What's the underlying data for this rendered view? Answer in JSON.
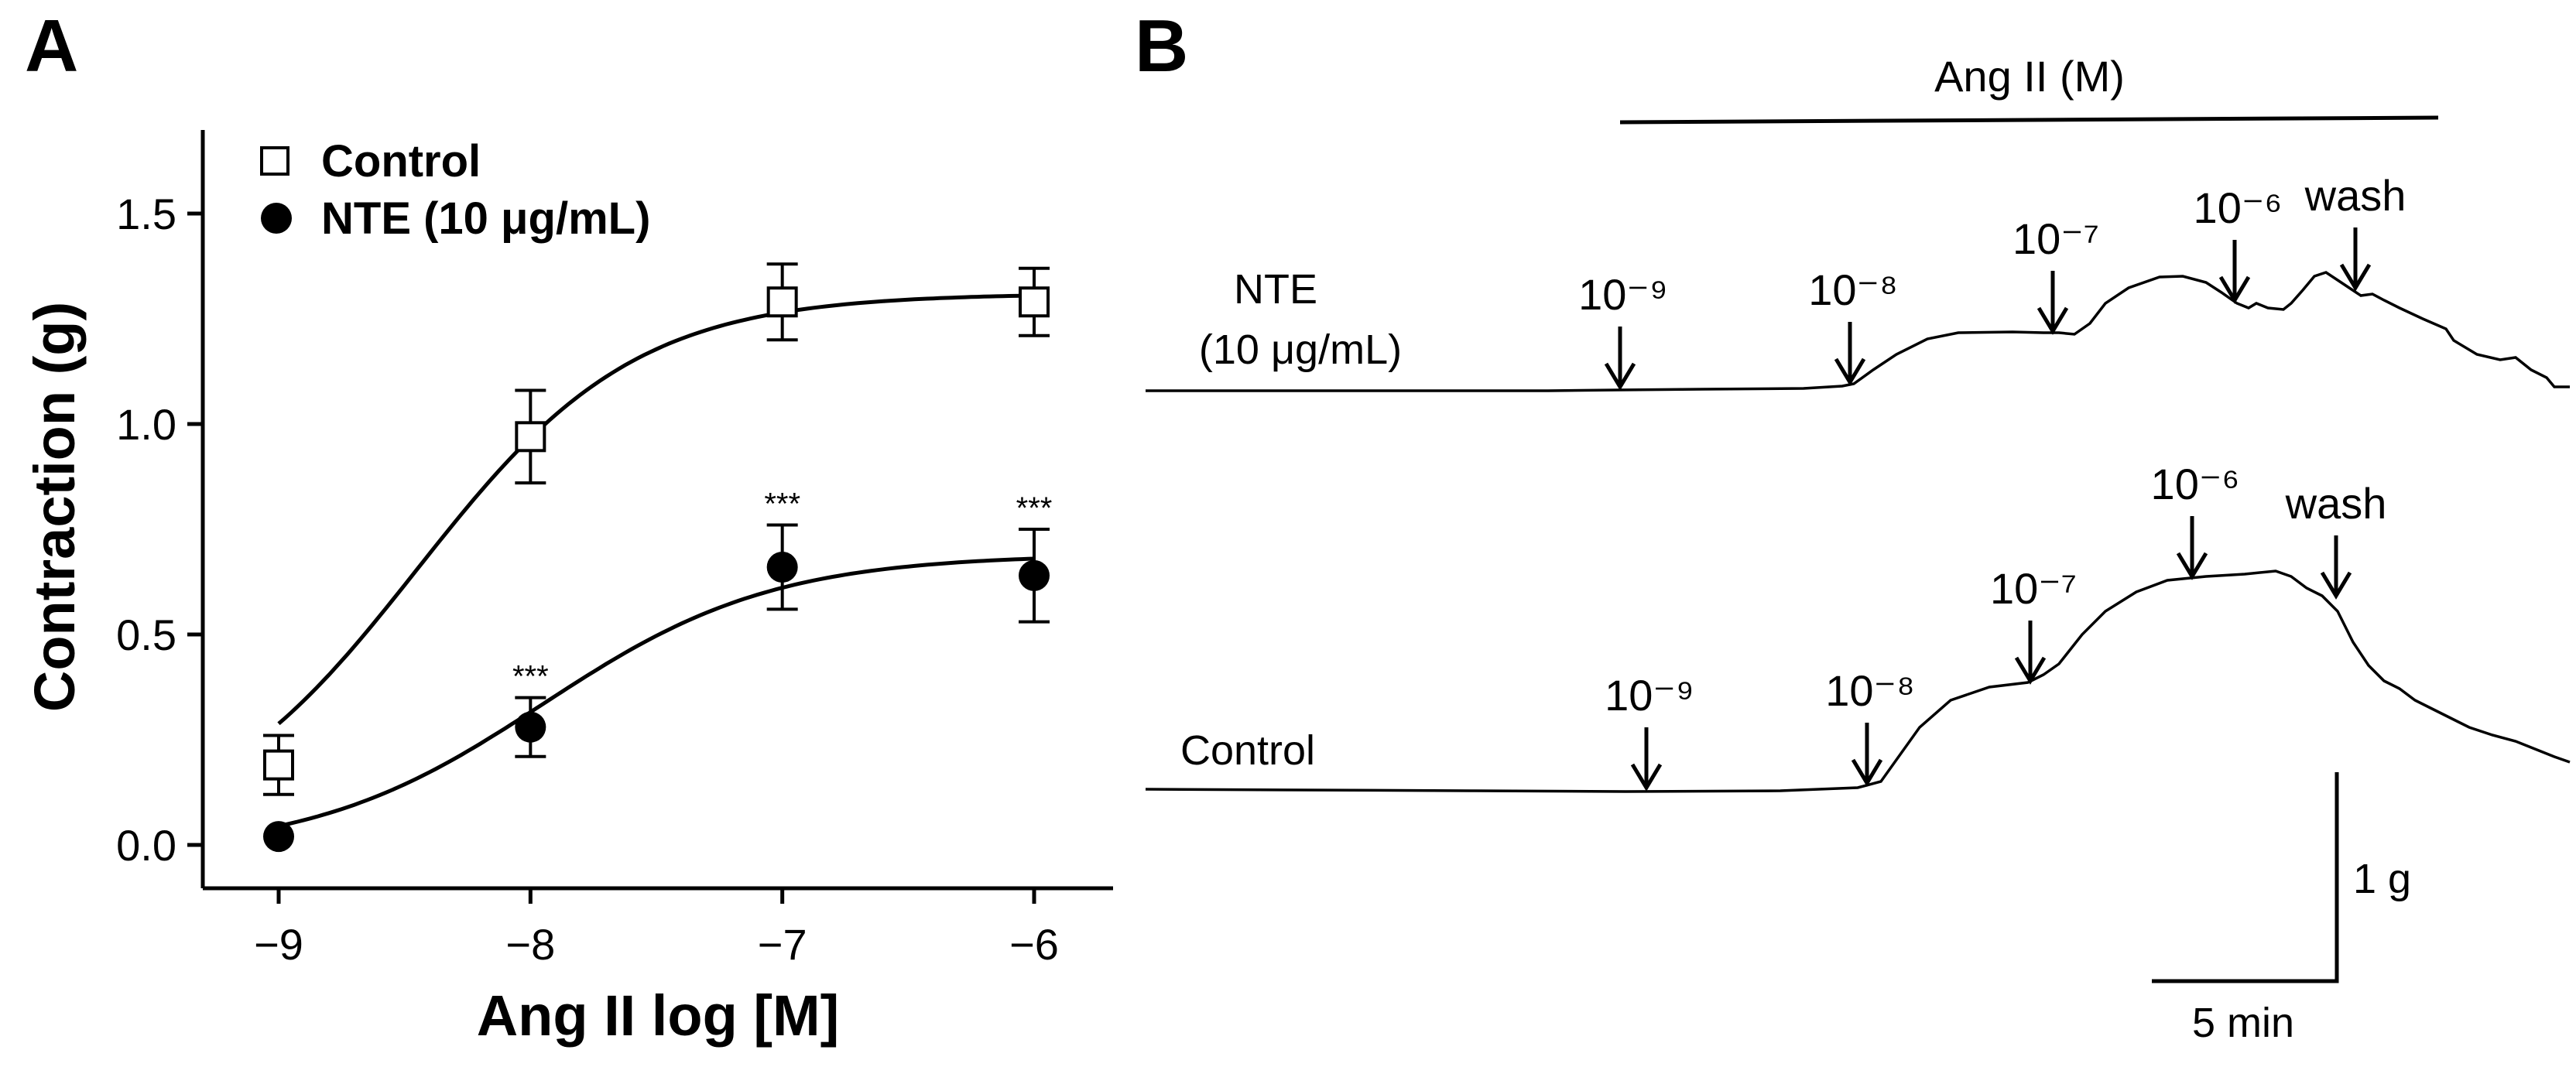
{
  "panel_a": {
    "letter": "A",
    "chart_data": {
      "type": "scatter",
      "xlabel": "Ang II log [M]",
      "ylabel": "Contraction (g)",
      "xlim": [
        -9.3,
        -5.9
      ],
      "ylim": [
        -0.1,
        1.7
      ],
      "xticks": [
        -9,
        -8,
        -7,
        -6
      ],
      "xtick_labels": [
        "−9",
        "−8",
        "−7",
        "−6"
      ],
      "yticks": [
        0.0,
        0.5,
        1.0,
        1.5
      ],
      "ytick_labels": [
        "0.0",
        "0.5",
        "1.0",
        "1.5"
      ],
      "grid": false,
      "legend_position": "top-left",
      "x": [
        -9,
        -8,
        -7,
        -6
      ],
      "series": [
        {
          "name": "Control",
          "marker": "open-square",
          "values": [
            0.19,
            0.97,
            1.29,
            1.29
          ],
          "error": [
            0.07,
            0.11,
            0.09,
            0.08
          ],
          "fit": {
            "bottom": 0.0,
            "top": 1.31,
            "ec50_log": -8.45,
            "hill": 1.0
          }
        },
        {
          "name": "NTE (10 μg/mL)",
          "marker": "filled-circle",
          "values": [
            0.02,
            0.28,
            0.66,
            0.64
          ],
          "error": [
            0.0,
            0.07,
            0.1,
            0.11
          ],
          "fit": {
            "bottom": -0.02,
            "top": 0.69,
            "ec50_log": -7.95,
            "hill": 0.95
          }
        }
      ],
      "annotations": [
        {
          "text": "***",
          "series": 1,
          "x": -8
        },
        {
          "text": "***",
          "series": 1,
          "x": -7
        },
        {
          "text": "***",
          "series": 1,
          "x": -6
        }
      ]
    }
  },
  "panel_b": {
    "letter": "B",
    "bar_label": "Ang II (M)",
    "trace_labels": {
      "nte_line1": "NTE",
      "nte_line2": "(10 μg/mL)",
      "control": "Control"
    },
    "doses": {
      "nte": [
        "10⁻⁹",
        "10⁻⁸",
        "10⁻⁷",
        "10⁻⁶",
        "wash"
      ],
      "control": [
        "10⁻⁹",
        "10⁻⁸",
        "10⁻⁷",
        "10⁻⁶",
        "wash"
      ]
    },
    "scale": {
      "vertical": "1 g",
      "horizontal": "5 min"
    }
  }
}
